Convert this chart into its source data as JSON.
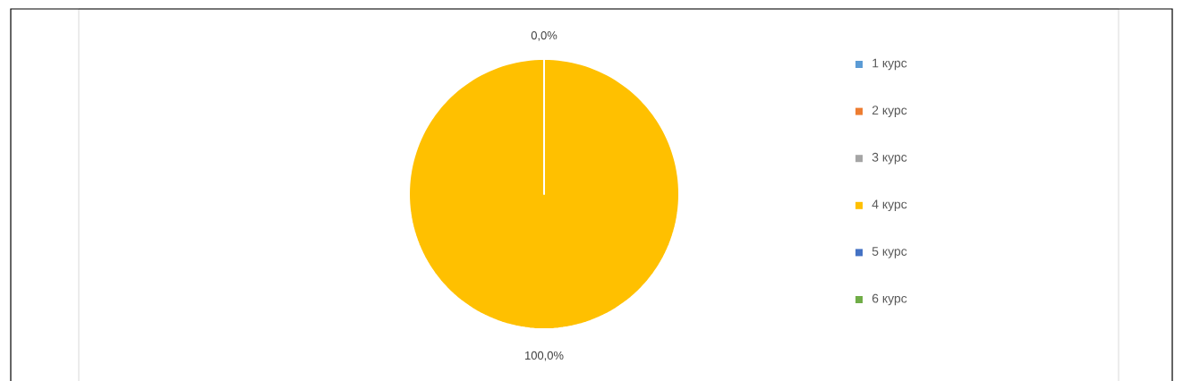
{
  "chart_data": {
    "type": "pie",
    "categories": [
      "1 курс",
      "2 курс",
      "3 курс",
      "4 курс",
      "5 курс",
      "6 курс"
    ],
    "values": [
      0,
      0,
      0,
      100,
      0,
      0
    ],
    "colors": [
      "#5b9bd5",
      "#ed7d31",
      "#a5a5a5",
      "#ffc000",
      "#4472c4",
      "#70ad47"
    ],
    "value_labels": [
      "0,0%",
      null,
      null,
      "100,0%",
      null,
      null
    ],
    "legend": "right"
  }
}
